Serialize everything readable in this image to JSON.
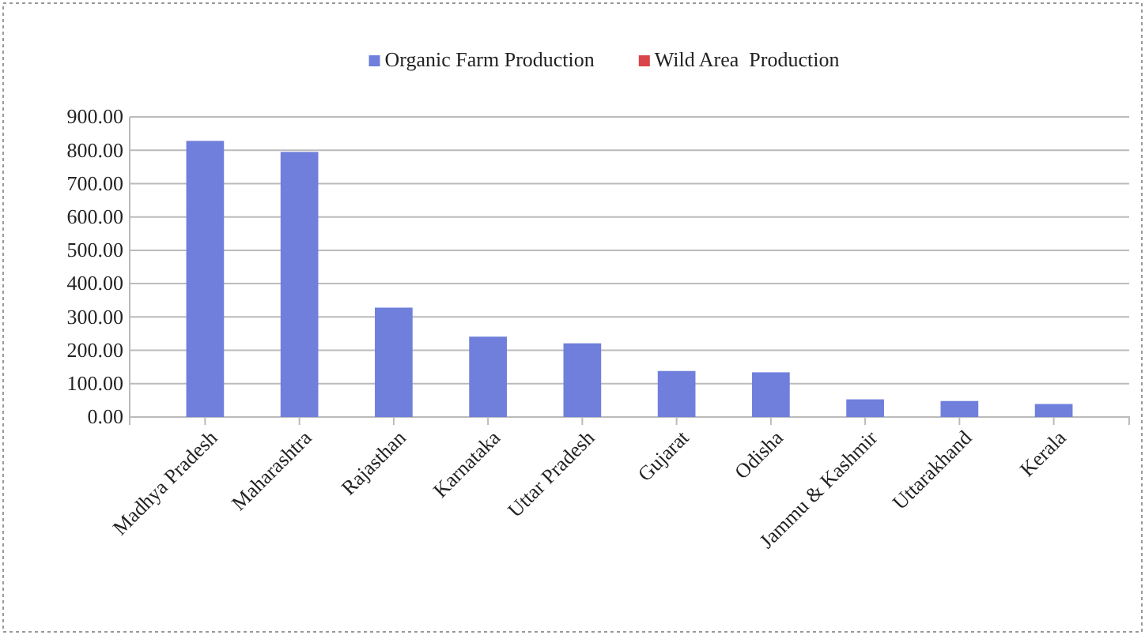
{
  "chart_data": {
    "type": "bar",
    "categories": [
      "Madhya Pradesh",
      "Maharashtra",
      "Rajasthan",
      "Karnataka",
      "Uttar Pradesh",
      "Gujarat",
      "Odisha",
      "Jammu & Kashmir",
      "Uttarakhand",
      "Kerala"
    ],
    "series": [
      {
        "name": "Organic Farm Production",
        "color": "#6f7fdb",
        "values": [
          828,
          795,
          328,
          241,
          221,
          138,
          134,
          53,
          48,
          39
        ]
      },
      {
        "name": "Wild Area  Production",
        "color": "#d9454a",
        "values": [
          null,
          null,
          null,
          null,
          null,
          null,
          null,
          null,
          null,
          null
        ]
      }
    ],
    "ylim": [
      0,
      900
    ],
    "yticks": [
      {
        "value": 0,
        "label": "0.00"
      },
      {
        "value": 100,
        "label": "100.00"
      },
      {
        "value": 200,
        "label": "200.00"
      },
      {
        "value": 300,
        "label": "300.00"
      },
      {
        "value": 400,
        "label": "400.00"
      },
      {
        "value": 500,
        "label": "500.00"
      },
      {
        "value": 600,
        "label": "600.00"
      },
      {
        "value": 700,
        "label": "700.00"
      },
      {
        "value": 800,
        "label": "800.00"
      },
      {
        "value": 900,
        "label": "900.00"
      }
    ],
    "grid": "y",
    "legend": "top"
  }
}
